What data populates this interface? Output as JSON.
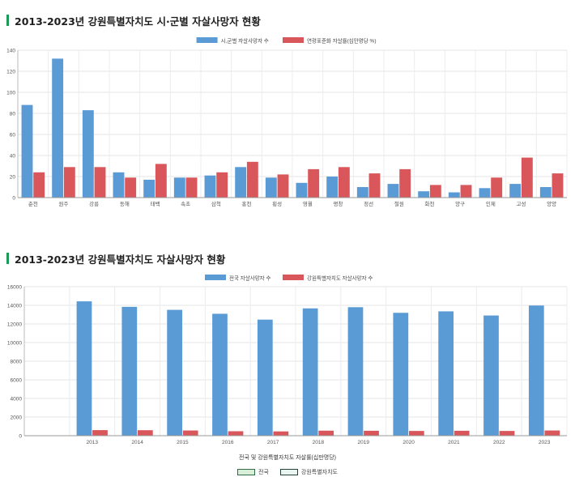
{
  "section1": {
    "title": "2013-2023년 강원특별자치도 시·군별 자살사망자 현황"
  },
  "section2": {
    "title": "2013-2023년 강원특별자치도 자살사망자 현황"
  },
  "chart_data": [
    {
      "type": "bar",
      "categories": [
        "춘천",
        "원주",
        "강릉",
        "동해",
        "태백",
        "속초",
        "삼척",
        "홍천",
        "횡성",
        "영월",
        "평창",
        "정선",
        "철원",
        "화천",
        "양구",
        "인제",
        "고성",
        "양양"
      ],
      "series": [
        {
          "name": "시,군별 자살사망자 수",
          "color": "#5b9bd5",
          "values": [
            88,
            132,
            83,
            24,
            17,
            19,
            21,
            29,
            19,
            14,
            20,
            10,
            13,
            6,
            5,
            9,
            13,
            10
          ]
        },
        {
          "name": "연령표준화 자살률(십만명당 %)",
          "color": "#d9575a",
          "values": [
            24,
            29,
            29,
            19,
            32,
            19,
            24,
            34,
            22,
            27,
            29,
            23,
            27,
            12,
            12,
            19,
            38,
            23
          ]
        }
      ],
      "ylim": [
        0,
        140
      ],
      "yticks": [
        0,
        20,
        40,
        60,
        80,
        100,
        120,
        140
      ],
      "xlabel": "",
      "ylabel": "",
      "legend": "top-center",
      "grid": true
    },
    {
      "type": "bar",
      "categories": [
        "",
        "2013",
        "2014",
        "2015",
        "2016",
        "2017",
        "2018",
        "2019",
        "2020",
        "2021",
        "2022",
        "2023"
      ],
      "series": [
        {
          "name": "전국 자살사망자 수",
          "color": "#5b9bd5",
          "values": [
            null,
            14427,
            13836,
            13513,
            13092,
            12463,
            13670,
            13799,
            13195,
            13352,
            12906,
            13978
          ]
        },
        {
          "name": "강원특별자치도 자살사망자 수",
          "color": "#d9575a",
          "values": [
            null,
            600,
            590,
            560,
            480,
            460,
            540,
            530,
            510,
            530,
            510,
            560
          ]
        }
      ],
      "ylim": [
        0,
        16000
      ],
      "yticks": [
        0,
        2000,
        4000,
        6000,
        8000,
        10000,
        12000,
        14000,
        16000
      ],
      "xlabel": "전국 및 강원특별자치도 자살률(십만명당)",
      "ylabel": "",
      "legend": "top-center",
      "grid": true,
      "bottom_legend": [
        "전국",
        "강원특별자치도"
      ]
    }
  ]
}
